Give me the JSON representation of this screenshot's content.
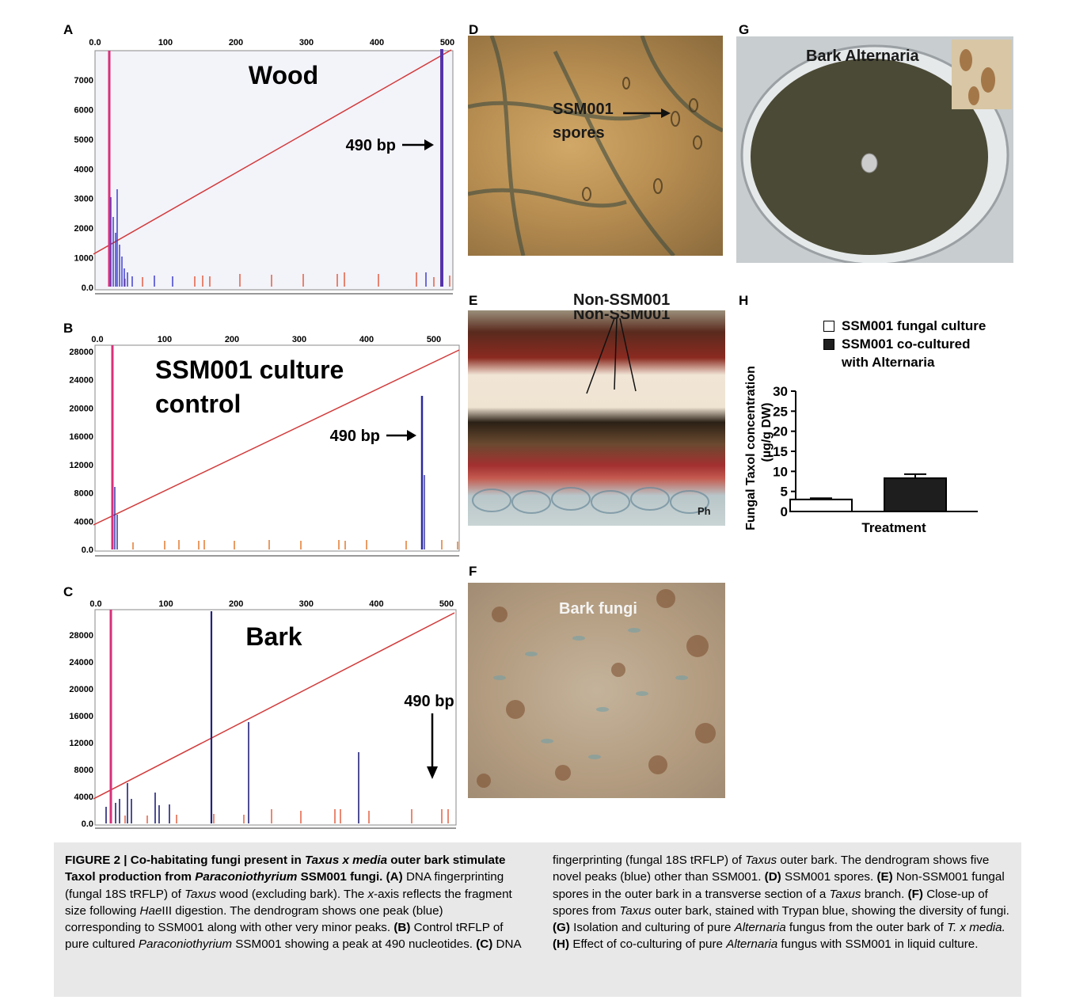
{
  "panels": {
    "A": {
      "letter": "A",
      "title": "Wood",
      "arrow_label": "490 bp",
      "x_ticks": [
        "0.0",
        "100",
        "200",
        "300",
        "400",
        "500"
      ],
      "y_ticks": [
        "7000",
        "6000",
        "5000",
        "4000",
        "3000",
        "2000",
        "1000",
        "0.0"
      ]
    },
    "B": {
      "letter": "B",
      "title_line1": "SSM001 culture",
      "title_line2": "control",
      "arrow_label": "490 bp",
      "x_ticks": [
        "0.0",
        "100",
        "200",
        "300",
        "400",
        "500"
      ],
      "y_ticks": [
        "28000",
        "24000",
        "20000",
        "16000",
        "12000",
        "8000",
        "4000",
        "0.0"
      ]
    },
    "C": {
      "letter": "C",
      "title": "Bark",
      "arrow_label": "490 bp",
      "x_ticks": [
        "0.0",
        "100",
        "200",
        "300",
        "400",
        "500"
      ],
      "y_ticks": [
        "28000",
        "24000",
        "20000",
        "16000",
        "12000",
        "8000",
        "4000",
        "0.0"
      ]
    },
    "D": {
      "letter": "D",
      "label_line1": "SSM001",
      "label_line2": "spores"
    },
    "E": {
      "letter": "E",
      "label": "Non-SSM001",
      "corner_label": "Ph"
    },
    "F": {
      "letter": "F",
      "label": "Bark fungi"
    },
    "G": {
      "letter": "G",
      "label": "Bark Alternaria"
    },
    "H": {
      "letter": "H"
    }
  },
  "chart_data": {
    "type": "bar",
    "categories": [
      "SSM001 fungal culture",
      "SSM001 co-cultured with Alternaria"
    ],
    "legend": [
      "SSM001 fungal culture",
      "SSM001 co-cultured",
      "with Alternaria"
    ],
    "values": [
      3.0,
      8.3
    ],
    "errors": [
      0.3,
      1.0
    ],
    "ylabel_line1": "Fungal Taxol concentration",
    "ylabel_line2": "(µg/g DW)",
    "xlabel": "Treatment",
    "ylim": [
      0,
      30
    ],
    "y_ticks": [
      "30",
      "25",
      "20",
      "15",
      "10",
      "5",
      "0"
    ],
    "colors": {
      "bar1": "#ffffff",
      "bar2": "#1e1e1e"
    }
  },
  "caption": {
    "fig": "FIGURE 2 | Co-habitating fungi present in ",
    "t1": "Taxus x media",
    "fig2": " outer bark stimulate Taxol production from ",
    "t2": "Paraconiothyrium",
    "fig3": " SSM001 fungi.",
    "a": " (A)",
    "a1": " DNA fingerprinting (fungal 18S tRFLP) of ",
    "a2": "Taxus",
    "a3": " wood (excluding bark). The ",
    "a4": "x",
    "a5": "-axis reflects the fragment size following ",
    "a6": "Hae",
    "a7": "III digestion. The dendrogram shows one peak (blue) corresponding to SSM001 along with other very minor peaks.",
    "b": " (B)",
    "b1": " Control tRFLP of pure cultured ",
    "b2": "Paraconiothyrium",
    "b3": " SSM001 showing a peak at 490 nucleotides.",
    "c": " (C)",
    "c1": " DNA fingerprinting (fungal 18S tRFLP) of ",
    "c2": "Taxus",
    "c3": " outer bark. The dendrogram shows five novel peaks (blue) other than SSM001.",
    "d": " (D)",
    "d1": " SSM001 spores.",
    "e": " (E)",
    "e1": " Non-SSM001 fungal spores in the outer bark in a transverse section of a ",
    "e2": "Taxus",
    "e3": " branch.",
    "f": " (F)",
    "f1": " Close-up of spores from ",
    "f2": "Taxus",
    "f3": " outer bark, stained with Trypan blue, showing the diversity of fungi.",
    "g": " (G)",
    "g1": " Isolation and culturing of pure ",
    "g2": "Alternaria",
    "g3": " fungus from the outer bark of ",
    "g4": "T. x media.",
    "h": " (H)",
    "h1": " Effect of co-culturing of pure ",
    "h2": "Alternaria",
    "h3": " fungus with SSM001 in liquid culture."
  }
}
